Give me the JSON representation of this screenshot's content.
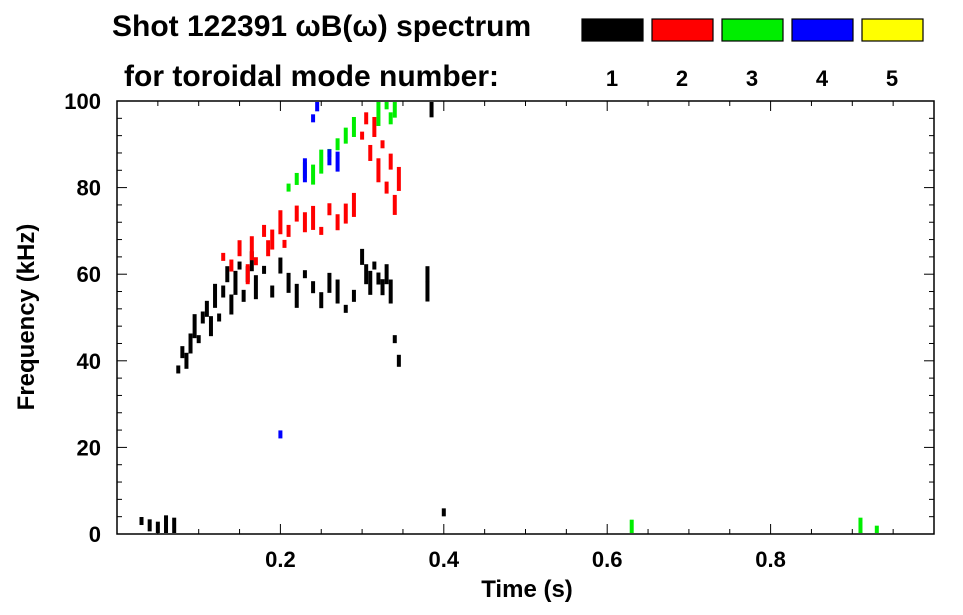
{
  "chart_data": {
    "type": "heatmap",
    "title": "Shot 122391 ωB(ω) spectrum",
    "subtitle": "for toroidal mode number:",
    "xlabel": "Time (s)",
    "ylabel": "Frequency (kHz)",
    "xlim": [
      0.0,
      1.0
    ],
    "ylim": [
      0,
      100
    ],
    "x_ticks": [
      0.2,
      0.4,
      0.6,
      0.8
    ],
    "x_tick_labels": [
      "0.2",
      "0.4",
      "0.6",
      "0.8"
    ],
    "y_ticks": [
      0,
      20,
      40,
      60,
      80,
      100
    ],
    "y_tick_labels": [
      "0",
      "20",
      "40",
      "60",
      "80",
      "100"
    ],
    "grid": false,
    "legend_position": "top-right",
    "modes": [
      {
        "n": 1,
        "label": "1",
        "color": "#000000"
      },
      {
        "n": 2,
        "label": "2",
        "color": "#ff0000"
      },
      {
        "n": 3,
        "label": "3",
        "color": "#00ee00"
      },
      {
        "n": 4,
        "label": "4",
        "color": "#0000ff"
      },
      {
        "n": 5,
        "label": "5",
        "color": "#ffff00"
      }
    ],
    "series": [
      {
        "mode": 1,
        "points": [
          [
            0.03,
            3
          ],
          [
            0.04,
            2
          ],
          [
            0.05,
            1
          ],
          [
            0.06,
            2
          ],
          [
            0.07,
            1
          ],
          [
            0.075,
            38
          ],
          [
            0.08,
            42
          ],
          [
            0.085,
            40
          ],
          [
            0.09,
            44
          ],
          [
            0.095,
            48
          ],
          [
            0.1,
            45
          ],
          [
            0.105,
            50
          ],
          [
            0.11,
            52
          ],
          [
            0.115,
            48
          ],
          [
            0.12,
            55
          ],
          [
            0.125,
            50
          ],
          [
            0.13,
            56
          ],
          [
            0.135,
            60
          ],
          [
            0.14,
            53
          ],
          [
            0.145,
            58
          ],
          [
            0.15,
            62
          ],
          [
            0.155,
            55
          ],
          [
            0.16,
            60
          ],
          [
            0.165,
            63
          ],
          [
            0.17,
            57
          ],
          [
            0.18,
            61
          ],
          [
            0.19,
            56
          ],
          [
            0.2,
            62
          ],
          [
            0.21,
            58
          ],
          [
            0.22,
            55
          ],
          [
            0.23,
            60
          ],
          [
            0.24,
            57
          ],
          [
            0.25,
            54
          ],
          [
            0.26,
            58
          ],
          [
            0.27,
            56
          ],
          [
            0.28,
            52
          ],
          [
            0.29,
            55
          ],
          [
            0.3,
            64
          ],
          [
            0.305,
            60
          ],
          [
            0.31,
            58
          ],
          [
            0.315,
            62
          ],
          [
            0.32,
            59
          ],
          [
            0.325,
            57
          ],
          [
            0.33,
            60
          ],
          [
            0.335,
            56
          ],
          [
            0.34,
            45
          ],
          [
            0.345,
            40
          ],
          [
            0.38,
            60
          ],
          [
            0.38,
            56
          ],
          [
            0.385,
            99
          ],
          [
            0.4,
            5
          ]
        ]
      },
      {
        "mode": 2,
        "points": [
          [
            0.13,
            64
          ],
          [
            0.14,
            62
          ],
          [
            0.15,
            66
          ],
          [
            0.16,
            60
          ],
          [
            0.165,
            66
          ],
          [
            0.17,
            63
          ],
          [
            0.18,
            70
          ],
          [
            0.185,
            66
          ],
          [
            0.19,
            68
          ],
          [
            0.2,
            72
          ],
          [
            0.205,
            67
          ],
          [
            0.21,
            70
          ],
          [
            0.22,
            74
          ],
          [
            0.23,
            72
          ],
          [
            0.24,
            73
          ],
          [
            0.25,
            70
          ],
          [
            0.26,
            75
          ],
          [
            0.27,
            72
          ],
          [
            0.28,
            74
          ],
          [
            0.29,
            76
          ],
          [
            0.3,
            92
          ],
          [
            0.305,
            96
          ],
          [
            0.31,
            88
          ],
          [
            0.315,
            94
          ],
          [
            0.32,
            84
          ],
          [
            0.325,
            90
          ],
          [
            0.33,
            80
          ],
          [
            0.335,
            86
          ],
          [
            0.34,
            76
          ],
          [
            0.345,
            82
          ]
        ]
      },
      {
        "mode": 3,
        "points": [
          [
            0.21,
            80
          ],
          [
            0.22,
            82
          ],
          [
            0.23,
            84
          ],
          [
            0.24,
            83
          ],
          [
            0.25,
            86
          ],
          [
            0.26,
            88
          ],
          [
            0.27,
            90
          ],
          [
            0.28,
            92
          ],
          [
            0.29,
            94
          ],
          [
            0.32,
            97
          ],
          [
            0.33,
            99
          ],
          [
            0.335,
            96
          ],
          [
            0.34,
            98
          ],
          [
            0.63,
            1
          ],
          [
            0.91,
            1
          ],
          [
            0.93,
            1
          ]
        ]
      },
      {
        "mode": 4,
        "points": [
          [
            0.24,
            96
          ],
          [
            0.245,
            99
          ],
          [
            0.26,
            87
          ],
          [
            0.27,
            86
          ],
          [
            0.23,
            84
          ],
          [
            0.2,
            23
          ]
        ]
      }
    ]
  }
}
